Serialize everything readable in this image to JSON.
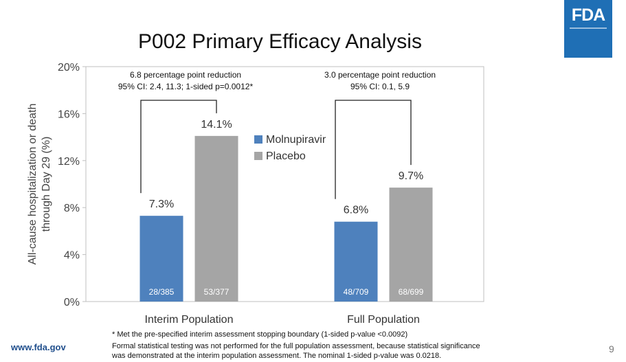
{
  "slide": {
    "title": "P002 Primary Efficacy Analysis",
    "logo_text": "FDA",
    "url": "www.fda.gov",
    "page_number": "9",
    "footnote1": "* Met the pre-specified interim assessment stopping boundary (1-sided p-value <0.0092)",
    "footnote2": "Formal statistical testing was not performed for the full population assessment, because statistical significance",
    "footnote3": "was demonstrated at the interim population assessment. The nominal 1-sided p-value was 0.0218."
  },
  "colors": {
    "molnupiravir": "#4e81bd",
    "placebo": "#a5a5a5",
    "logo_bg": "#1f6fb5"
  },
  "chart_data": {
    "type": "bar",
    "ylabel_line1": "All-cause hospitalization or death",
    "ylabel_line2": "through Day 29 (%)",
    "ylim": [
      0,
      20
    ],
    "yticks": [
      0,
      4,
      8,
      12,
      16,
      20
    ],
    "ytick_labels": [
      "0%",
      "4%",
      "8%",
      "12%",
      "16%",
      "20%"
    ],
    "categories": [
      "Interim Population",
      "Full Population"
    ],
    "series": [
      {
        "name": "Molnupiravir",
        "values": [
          7.3,
          6.8
        ],
        "value_labels": [
          "7.3%",
          "6.8%"
        ],
        "count_labels": [
          "28/385",
          "48/709"
        ]
      },
      {
        "name": "Placebo",
        "values": [
          14.1,
          9.7
        ],
        "value_labels": [
          "14.1%",
          "9.7%"
        ],
        "count_labels": [
          "53/377",
          "68/699"
        ]
      }
    ],
    "annotations": [
      {
        "line1": "6.8 percentage point reduction",
        "line2": "95% CI: 2.4, 11.3; 1-sided p=0.0012*"
      },
      {
        "line1": "3.0 percentage point reduction",
        "line2": "95% CI: 0.1, 5.9"
      }
    ],
    "legend_position": "center",
    "grid": false
  }
}
